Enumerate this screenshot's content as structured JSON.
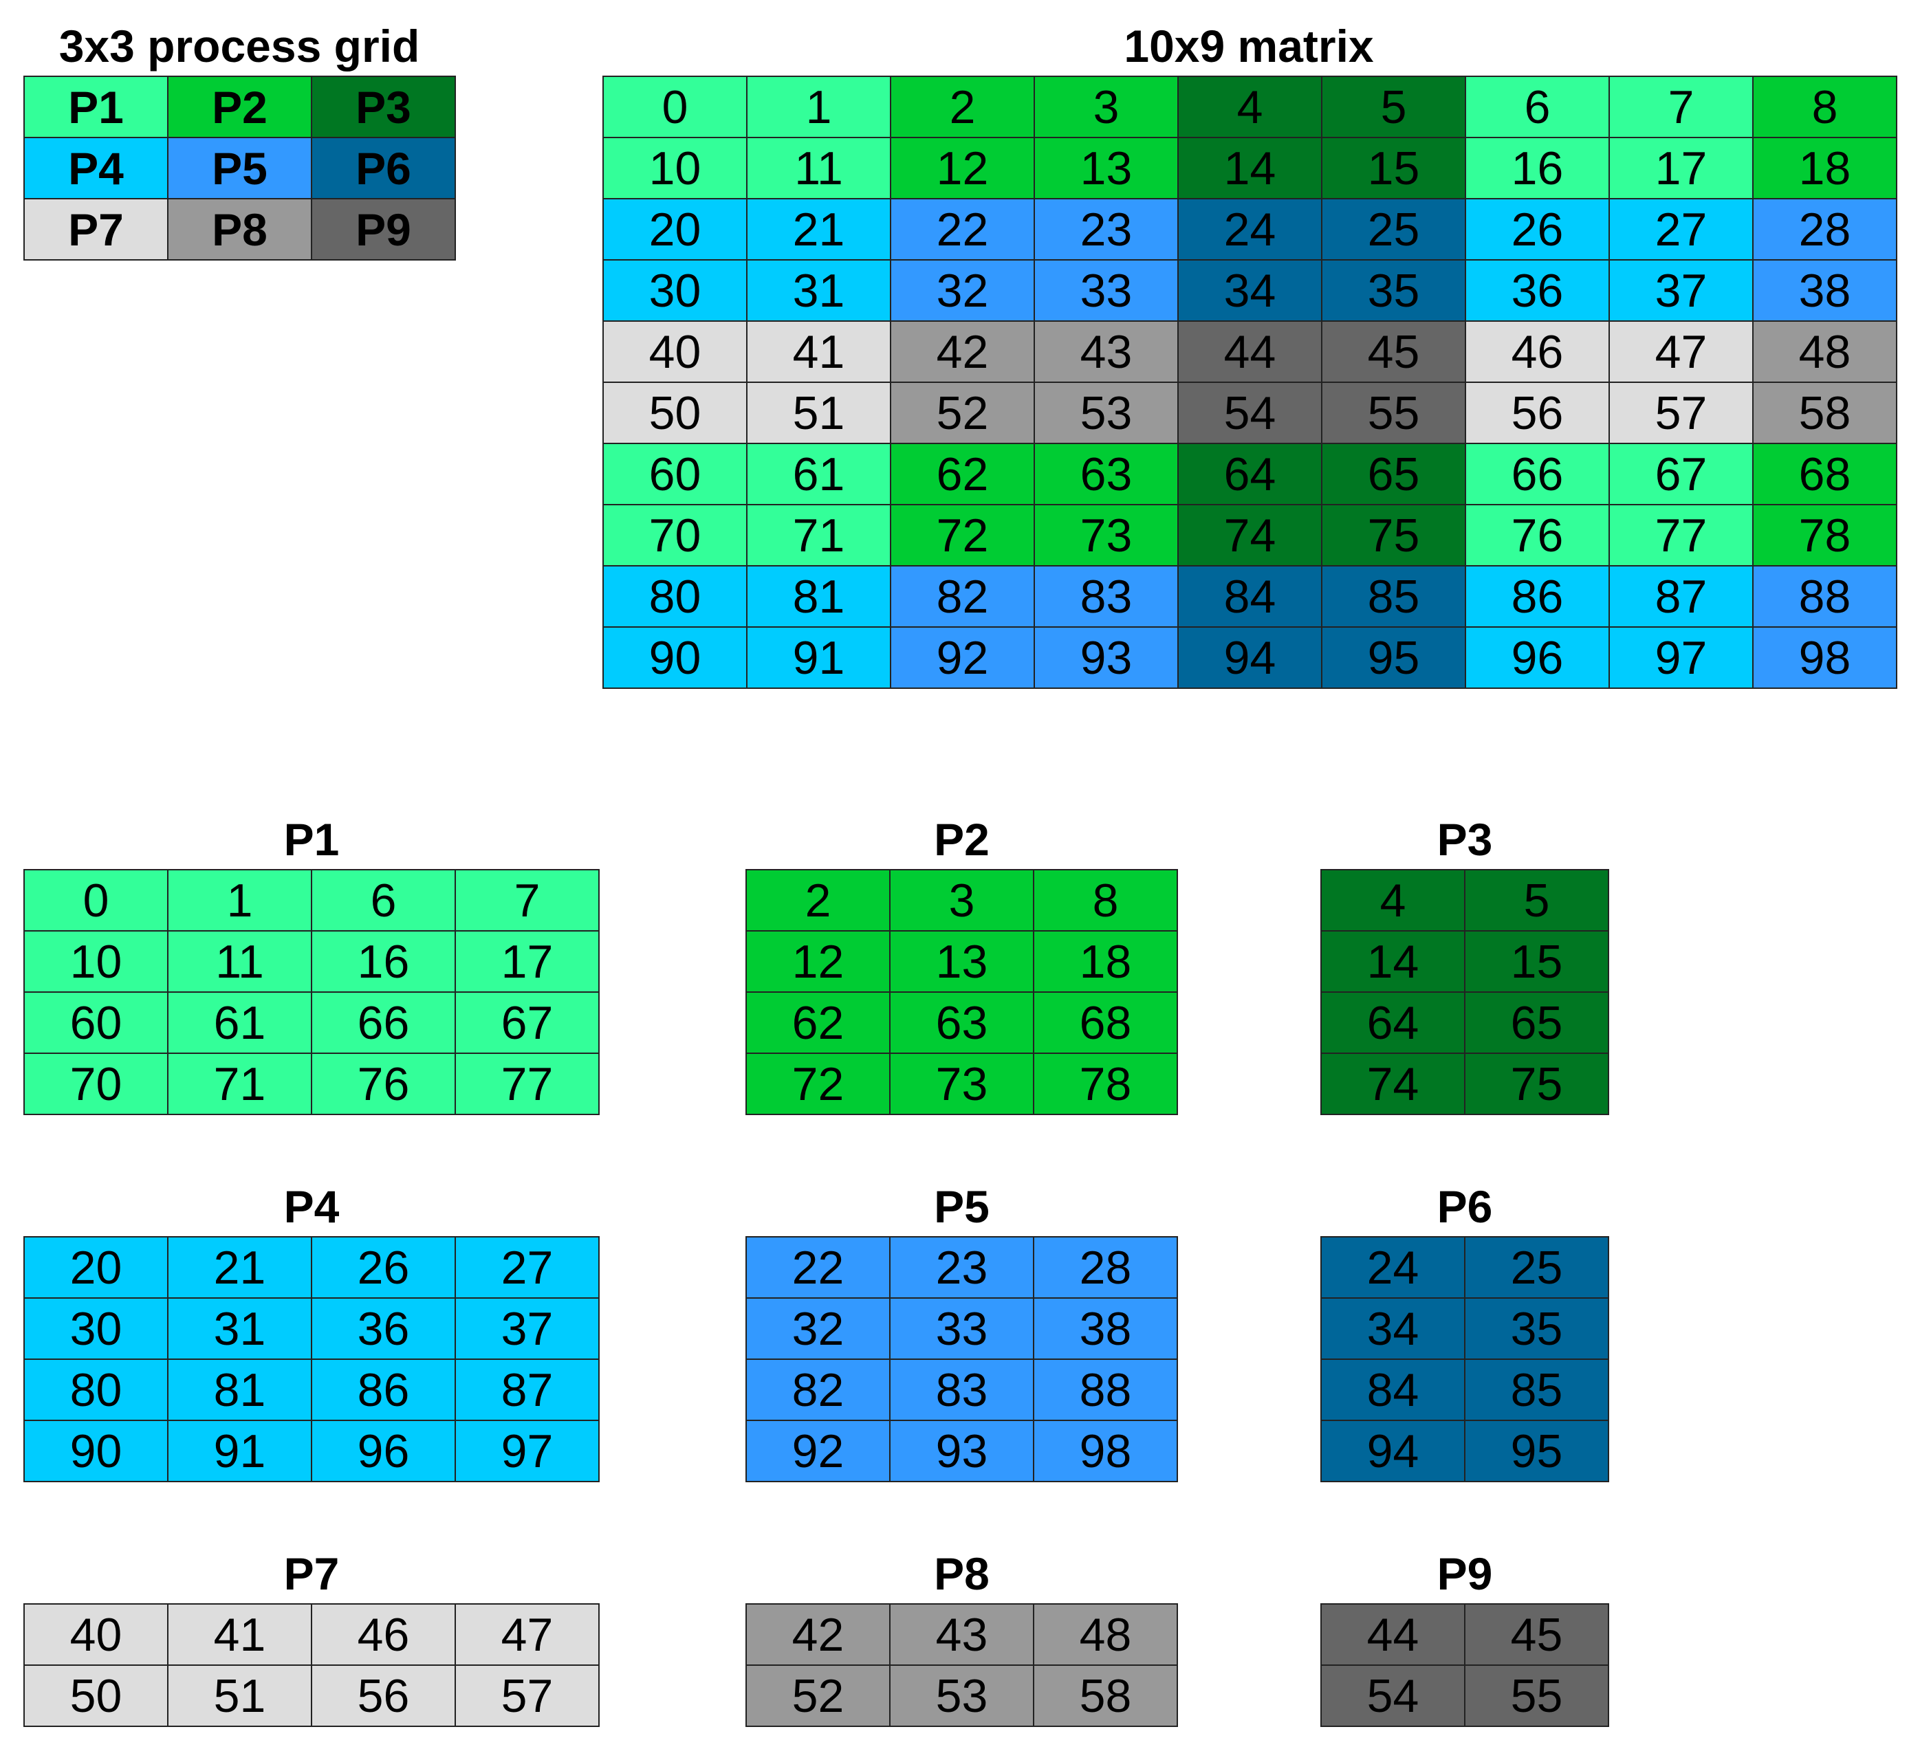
{
  "colors": {
    "P1": "#33ff99",
    "P2": "#00cc33",
    "P3": "#007722",
    "P4": "#00ccff",
    "P5": "#3399ff",
    "P6": "#006699",
    "P7": "#dddddd",
    "P8": "#999999",
    "P9": "#666666"
  },
  "process_grid": {
    "title": "3x3 process grid",
    "rows": [
      [
        "P1",
        "P2",
        "P3"
      ],
      [
        "P4",
        "P5",
        "P6"
      ],
      [
        "P7",
        "P8",
        "P9"
      ]
    ]
  },
  "matrix": {
    "title": "10x9 matrix",
    "values": [
      [
        "0",
        "1",
        "2",
        "3",
        "4",
        "5",
        "6",
        "7",
        "8"
      ],
      [
        "10",
        "11",
        "12",
        "13",
        "14",
        "15",
        "16",
        "17",
        "18"
      ],
      [
        "20",
        "21",
        "22",
        "23",
        "24",
        "25",
        "26",
        "27",
        "28"
      ],
      [
        "30",
        "31",
        "32",
        "33",
        "34",
        "35",
        "36",
        "37",
        "38"
      ],
      [
        "40",
        "41",
        "42",
        "43",
        "44",
        "45",
        "46",
        "47",
        "48"
      ],
      [
        "50",
        "51",
        "52",
        "53",
        "54",
        "55",
        "56",
        "57",
        "58"
      ],
      [
        "60",
        "61",
        "62",
        "63",
        "64",
        "65",
        "66",
        "67",
        "68"
      ],
      [
        "70",
        "71",
        "72",
        "73",
        "74",
        "75",
        "76",
        "77",
        "78"
      ],
      [
        "80",
        "81",
        "82",
        "83",
        "84",
        "85",
        "86",
        "87",
        "88"
      ],
      [
        "90",
        "91",
        "92",
        "93",
        "94",
        "95",
        "96",
        "97",
        "98"
      ]
    ],
    "owners": [
      [
        "P1",
        "P1",
        "P2",
        "P2",
        "P3",
        "P3",
        "P1",
        "P1",
        "P2"
      ],
      [
        "P1",
        "P1",
        "P2",
        "P2",
        "P3",
        "P3",
        "P1",
        "P1",
        "P2"
      ],
      [
        "P4",
        "P4",
        "P5",
        "P5",
        "P6",
        "P6",
        "P4",
        "P4",
        "P5"
      ],
      [
        "P4",
        "P4",
        "P5",
        "P5",
        "P6",
        "P6",
        "P4",
        "P4",
        "P5"
      ],
      [
        "P7",
        "P7",
        "P8",
        "P8",
        "P9",
        "P9",
        "P7",
        "P7",
        "P8"
      ],
      [
        "P7",
        "P7",
        "P8",
        "P8",
        "P9",
        "P9",
        "P7",
        "P7",
        "P8"
      ],
      [
        "P1",
        "P1",
        "P2",
        "P2",
        "P3",
        "P3",
        "P1",
        "P1",
        "P2"
      ],
      [
        "P1",
        "P1",
        "P2",
        "P2",
        "P3",
        "P3",
        "P1",
        "P1",
        "P2"
      ],
      [
        "P4",
        "P4",
        "P5",
        "P5",
        "P6",
        "P6",
        "P4",
        "P4",
        "P5"
      ],
      [
        "P4",
        "P4",
        "P5",
        "P5",
        "P6",
        "P6",
        "P4",
        "P4",
        "P5"
      ]
    ]
  },
  "local_blocks": [
    {
      "title": "P1",
      "values": [
        [
          "0",
          "1",
          "6",
          "7"
        ],
        [
          "10",
          "11",
          "16",
          "17"
        ],
        [
          "60",
          "61",
          "66",
          "67"
        ],
        [
          "70",
          "71",
          "76",
          "77"
        ]
      ]
    },
    {
      "title": "P2",
      "values": [
        [
          "2",
          "3",
          "8"
        ],
        [
          "12",
          "13",
          "18"
        ],
        [
          "62",
          "63",
          "68"
        ],
        [
          "72",
          "73",
          "78"
        ]
      ]
    },
    {
      "title": "P3",
      "values": [
        [
          "4",
          "5"
        ],
        [
          "14",
          "15"
        ],
        [
          "64",
          "65"
        ],
        [
          "74",
          "75"
        ]
      ]
    },
    {
      "title": "P4",
      "values": [
        [
          "20",
          "21",
          "26",
          "27"
        ],
        [
          "30",
          "31",
          "36",
          "37"
        ],
        [
          "80",
          "81",
          "86",
          "87"
        ],
        [
          "90",
          "91",
          "96",
          "97"
        ]
      ]
    },
    {
      "title": "P5",
      "values": [
        [
          "22",
          "23",
          "28"
        ],
        [
          "32",
          "33",
          "38"
        ],
        [
          "82",
          "83",
          "88"
        ],
        [
          "92",
          "93",
          "98"
        ]
      ]
    },
    {
      "title": "P6",
      "values": [
        [
          "24",
          "25"
        ],
        [
          "34",
          "35"
        ],
        [
          "84",
          "85"
        ],
        [
          "94",
          "95"
        ]
      ]
    },
    {
      "title": "P7",
      "values": [
        [
          "40",
          "41",
          "46",
          "47"
        ],
        [
          "50",
          "51",
          "56",
          "57"
        ]
      ]
    },
    {
      "title": "P8",
      "values": [
        [
          "42",
          "43",
          "48"
        ],
        [
          "52",
          "53",
          "58"
        ]
      ]
    },
    {
      "title": "P9",
      "values": [
        [
          "44",
          "45"
        ],
        [
          "54",
          "55"
        ]
      ]
    }
  ]
}
